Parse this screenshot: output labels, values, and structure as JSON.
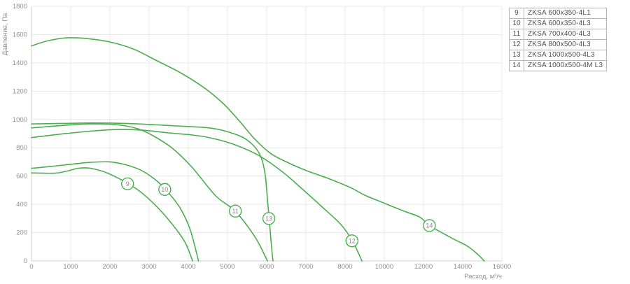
{
  "chart_data": {
    "type": "line",
    "title": "",
    "xlabel": "Расход, м³/ч",
    "ylabel": "Давление, Па",
    "x_axis_note": "tick marks are evenly spaced categories: step 1000 up to 8000, then step 2000 to 16000",
    "x_tick_labels": [
      "0",
      "1000",
      "2000",
      "3000",
      "4000",
      "5000",
      "6000",
      "7000",
      "8000",
      "10000",
      "12000",
      "14000",
      "16000"
    ],
    "x_tick_values": [
      0,
      1000,
      2000,
      3000,
      4000,
      5000,
      6000,
      7000,
      8000,
      10000,
      12000,
      14000,
      16000
    ],
    "y_tick_labels": [
      "0",
      "200",
      "400",
      "600",
      "800",
      "1000",
      "1200",
      "1400",
      "1600",
      "1800"
    ],
    "y_tick_values": [
      0,
      200,
      400,
      600,
      800,
      1000,
      1200,
      1400,
      1600,
      1800
    ],
    "ylim": [
      0,
      1800
    ],
    "xlim": [
      0,
      16000
    ],
    "grid": true,
    "legend_position": "top-right-table",
    "line_color": "#4cae4f",
    "series": [
      {
        "id": "9",
        "name": "ZKSA 600x350-4L1",
        "marker": {
          "x": 2450,
          "y": 545,
          "label": "9"
        },
        "points": [
          [
            0,
            622
          ],
          [
            600,
            620
          ],
          [
            900,
            635
          ],
          [
            1200,
            655
          ],
          [
            1500,
            655
          ],
          [
            1900,
            625
          ],
          [
            2300,
            572
          ],
          [
            2700,
            505
          ],
          [
            3100,
            410
          ],
          [
            3500,
            290
          ],
          [
            3900,
            140
          ],
          [
            4110,
            0
          ]
        ]
      },
      {
        "id": "10",
        "name": "ZKSA 600x350-4L3",
        "marker": {
          "x": 3400,
          "y": 505,
          "label": "10"
        },
        "points": [
          [
            0,
            655
          ],
          [
            500,
            668
          ],
          [
            1000,
            683
          ],
          [
            1500,
            697
          ],
          [
            2000,
            700
          ],
          [
            2400,
            680
          ],
          [
            2800,
            640
          ],
          [
            3200,
            565
          ],
          [
            3500,
            480
          ],
          [
            3800,
            370
          ],
          [
            4050,
            220
          ],
          [
            4260,
            0
          ]
        ]
      },
      {
        "id": "11",
        "name": "ZKSA 700x400-4L3",
        "marker": {
          "x": 5200,
          "y": 352,
          "label": "11"
        },
        "points": [
          [
            0,
            940
          ],
          [
            800,
            958
          ],
          [
            1500,
            968
          ],
          [
            2200,
            962
          ],
          [
            2700,
            935
          ],
          [
            3100,
            885
          ],
          [
            3600,
            795
          ],
          [
            4100,
            660
          ],
          [
            4700,
            460
          ],
          [
            5200,
            350
          ],
          [
            5700,
            170
          ],
          [
            6020,
            0
          ]
        ]
      },
      {
        "id": "12",
        "name": "ZKSA 800x500-4L3",
        "marker": {
          "x": 8350,
          "y": 142,
          "label": "12"
        },
        "points": [
          [
            0,
            872
          ],
          [
            700,
            895
          ],
          [
            1400,
            915
          ],
          [
            2100,
            928
          ],
          [
            2800,
            925
          ],
          [
            3500,
            905
          ],
          [
            4100,
            890
          ],
          [
            4600,
            868
          ],
          [
            5200,
            820
          ],
          [
            5800,
            745
          ],
          [
            6400,
            630
          ],
          [
            6900,
            510
          ],
          [
            7400,
            385
          ],
          [
            7900,
            255
          ],
          [
            8400,
            135
          ],
          [
            8860,
            0
          ]
        ]
      },
      {
        "id": "13",
        "name": "ZKSA 1000x500-4L3",
        "marker": {
          "x": 6055,
          "y": 300,
          "label": "13"
        },
        "points": [
          [
            0,
            968
          ],
          [
            800,
            972
          ],
          [
            1600,
            975
          ],
          [
            2400,
            972
          ],
          [
            3200,
            962
          ],
          [
            4000,
            950
          ],
          [
            4600,
            938
          ],
          [
            5100,
            905
          ],
          [
            5500,
            855
          ],
          [
            5800,
            765
          ],
          [
            5950,
            630
          ],
          [
            6030,
            400
          ],
          [
            6070,
            280
          ],
          [
            6110,
            140
          ],
          [
            6160,
            0
          ]
        ]
      },
      {
        "id": "14",
        "name": "ZKSA 1000x500-4M L3",
        "marker": {
          "x": 12300,
          "y": 250,
          "label": "14"
        },
        "points": [
          [
            0,
            1520
          ],
          [
            400,
            1555
          ],
          [
            900,
            1577
          ],
          [
            1400,
            1572
          ],
          [
            2000,
            1548
          ],
          [
            2600,
            1498
          ],
          [
            3200,
            1415
          ],
          [
            3800,
            1330
          ],
          [
            4400,
            1225
          ],
          [
            4900,
            1110
          ],
          [
            5300,
            990
          ],
          [
            5700,
            860
          ],
          [
            6100,
            760
          ],
          [
            6500,
            700
          ],
          [
            7000,
            640
          ],
          [
            7600,
            580
          ],
          [
            8250,
            520
          ],
          [
            9000,
            465
          ],
          [
            10000,
            408
          ],
          [
            11000,
            352
          ],
          [
            11800,
            310
          ],
          [
            12300,
            250
          ],
          [
            13000,
            195
          ],
          [
            13600,
            150
          ],
          [
            14200,
            108
          ],
          [
            14700,
            55
          ],
          [
            15100,
            0
          ]
        ]
      }
    ]
  },
  "legend": {
    "rows": [
      {
        "num": "9",
        "label": "ZKSA 600x350-4L1"
      },
      {
        "num": "10",
        "label": "ZKSA 600x350-4L3"
      },
      {
        "num": "11",
        "label": "ZKSA 700x400-4L3"
      },
      {
        "num": "12",
        "label": "ZKSA 800x500-4L3"
      },
      {
        "num": "13",
        "label": "ZKSA 1000x500-4L3"
      },
      {
        "num": "14",
        "label": "ZKSA 1000x500-4M L3"
      }
    ]
  },
  "axes": {
    "x_title": "Расход, м³/ч",
    "y_title": "Давление, Па"
  },
  "colors": {
    "curve": "#4cae4f",
    "grid": "#e9e9e9",
    "axis": "#cfcfcf",
    "tick_text": "#8f8f8f",
    "legend_border": "#b5b5b5",
    "legend_text": "#4f4f4f",
    "marker_text": "#8a8a8a"
  }
}
